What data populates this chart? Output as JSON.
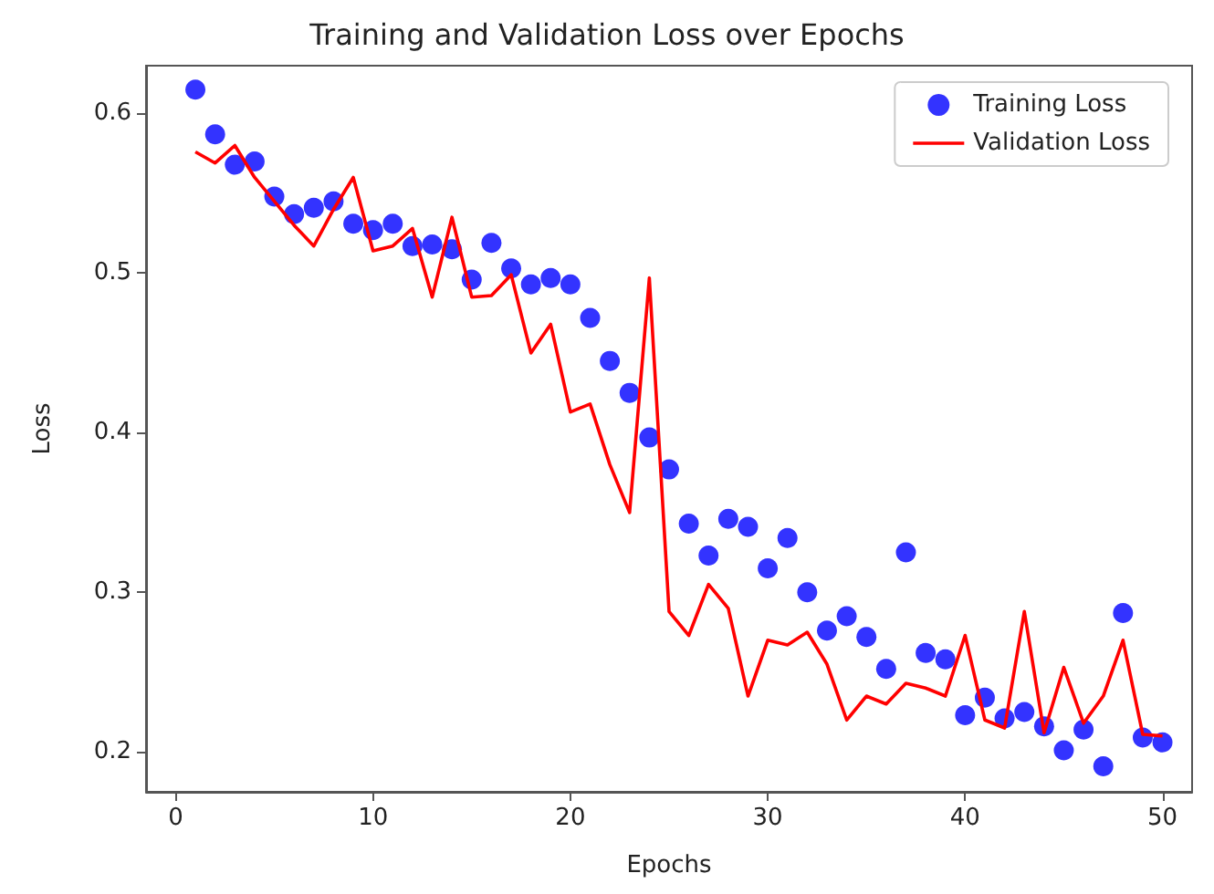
{
  "chart_data": {
    "type": "line",
    "title": "Training and Validation Loss over Epochs",
    "xlabel": "Epochs",
    "ylabel": "Loss",
    "x": [
      1,
      2,
      3,
      4,
      5,
      6,
      7,
      8,
      9,
      10,
      11,
      12,
      13,
      14,
      15,
      16,
      17,
      18,
      19,
      20,
      21,
      22,
      23,
      24,
      25,
      26,
      27,
      28,
      29,
      30,
      31,
      32,
      33,
      34,
      35,
      36,
      37,
      38,
      39,
      40,
      41,
      42,
      43,
      44,
      45,
      46,
      47,
      48,
      49,
      50
    ],
    "series": [
      {
        "name": "Training Loss",
        "type": "scatter",
        "color": "#0000ff",
        "marker": "circle",
        "values": [
          0.615,
          0.587,
          0.568,
          0.57,
          0.548,
          0.537,
          0.541,
          0.545,
          0.531,
          0.527,
          0.531,
          0.517,
          0.518,
          0.515,
          0.496,
          0.519,
          0.503,
          0.493,
          0.497,
          0.493,
          0.472,
          0.445,
          0.425,
          0.397,
          0.377,
          0.343,
          0.323,
          0.346,
          0.341,
          0.315,
          0.334,
          0.3,
          0.276,
          0.285,
          0.272,
          0.252,
          0.325,
          0.262,
          0.258,
          0.223,
          0.234,
          0.221,
          0.225,
          0.216,
          0.201,
          0.214,
          0.191,
          0.287,
          0.209,
          0.206
        ]
      },
      {
        "name": "Validation Loss",
        "type": "line",
        "color": "#ff0000",
        "marker": "none",
        "line_style": "solid",
        "values": [
          0.576,
          0.569,
          0.58,
          0.56,
          0.545,
          0.53,
          0.517,
          0.54,
          0.56,
          0.514,
          0.517,
          0.528,
          0.485,
          0.535,
          0.485,
          0.486,
          0.499,
          0.45,
          0.468,
          0.413,
          0.418,
          0.38,
          0.35,
          0.497,
          0.288,
          0.273,
          0.305,
          0.29,
          0.235,
          0.27,
          0.267,
          0.275,
          0.255,
          0.22,
          0.235,
          0.23,
          0.243,
          0.24,
          0.235,
          0.273,
          0.22,
          0.215,
          0.288,
          0.212,
          0.253,
          0.218,
          0.235,
          0.27,
          0.211,
          0.21
        ]
      }
    ],
    "xlim": [
      -1.5,
      51.5
    ],
    "xticks": [
      0,
      10,
      20,
      30,
      40,
      50
    ],
    "ylim": [
      0.175,
      0.63
    ],
    "yticks": [
      0.2,
      0.3,
      0.4,
      0.5,
      0.6
    ],
    "grid": false,
    "legend": "top right"
  }
}
